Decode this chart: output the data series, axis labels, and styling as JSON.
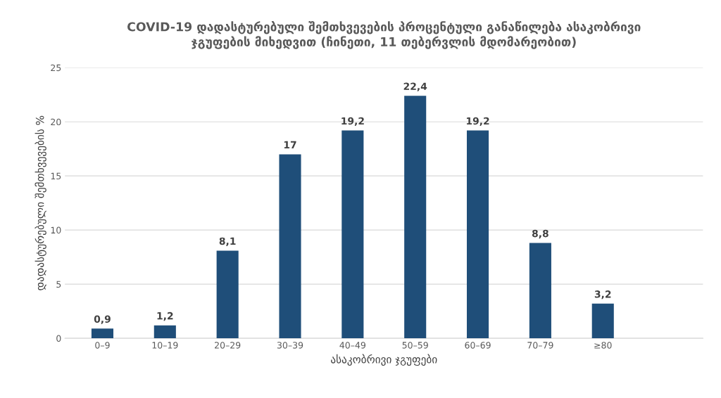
{
  "chart_data": {
    "type": "bar",
    "title": "COVID-19 დადასტურებული შემთხვევების პროცენტული განაწილება ასაკობრივი\nჯგუფების მიხედვით (ჩინეთი, 11 თებერვლის მდომარეობით)",
    "xlabel": "ასაკობრივი ჯგუფები",
    "ylabel": "დადასტურებული შემთხვევების %",
    "categories": [
      "0–9",
      "10–19",
      "20–29",
      "30–39",
      "40–49",
      "50–59",
      "60–69",
      "70–79",
      "≥80",
      null
    ],
    "values": [
      0.9,
      1.2,
      8.1,
      17,
      19.2,
      22.4,
      19.2,
      8.8,
      3.2,
      null
    ],
    "value_labels": [
      "0,9",
      "1,2",
      "8,1",
      "17",
      "19,2",
      "22,4",
      "19,2",
      "8,8",
      "3,2",
      null
    ],
    "color": "#1f4e79",
    "ylim": [
      0,
      25
    ],
    "yticks": [
      0,
      5,
      10,
      15,
      20,
      25
    ],
    "grid": "y",
    "legend": false
  }
}
